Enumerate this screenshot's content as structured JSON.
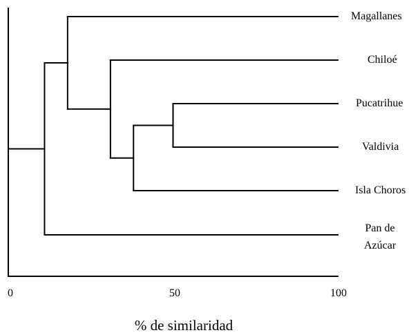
{
  "leaves": [
    {
      "id": "magallanes",
      "lines": [
        "Magallanes"
      ]
    },
    {
      "id": "chiloe",
      "lines": [
        "Chiloé"
      ]
    },
    {
      "id": "pucatrihue",
      "lines": [
        "Pucatrihue"
      ]
    },
    {
      "id": "valdivia",
      "lines": [
        "Valdivia"
      ]
    },
    {
      "id": "isla_choros",
      "lines": [
        "Isla Choros"
      ]
    },
    {
      "id": "pan_de_azucar",
      "lines": [
        "Pan de",
        "Azúcar"
      ]
    }
  ],
  "merges": [
    {
      "id": "m1",
      "a": "pucatrihue",
      "b": "valdivia",
      "similarity": 50
    },
    {
      "id": "m2",
      "a": "m1",
      "b": "isla_choros",
      "similarity": 38
    },
    {
      "id": "m3",
      "a": "chiloe",
      "b": "m2",
      "similarity": 31
    },
    {
      "id": "m4",
      "a": "magallanes",
      "b": "m3",
      "similarity": 18
    },
    {
      "id": "m5",
      "a": "m4",
      "b": "pan_de_azucar",
      "similarity": 11
    }
  ],
  "axis": {
    "min": 0,
    "max": 100,
    "ticks": [
      "0",
      "50",
      "100"
    ],
    "title": "% de similaridad"
  }
}
